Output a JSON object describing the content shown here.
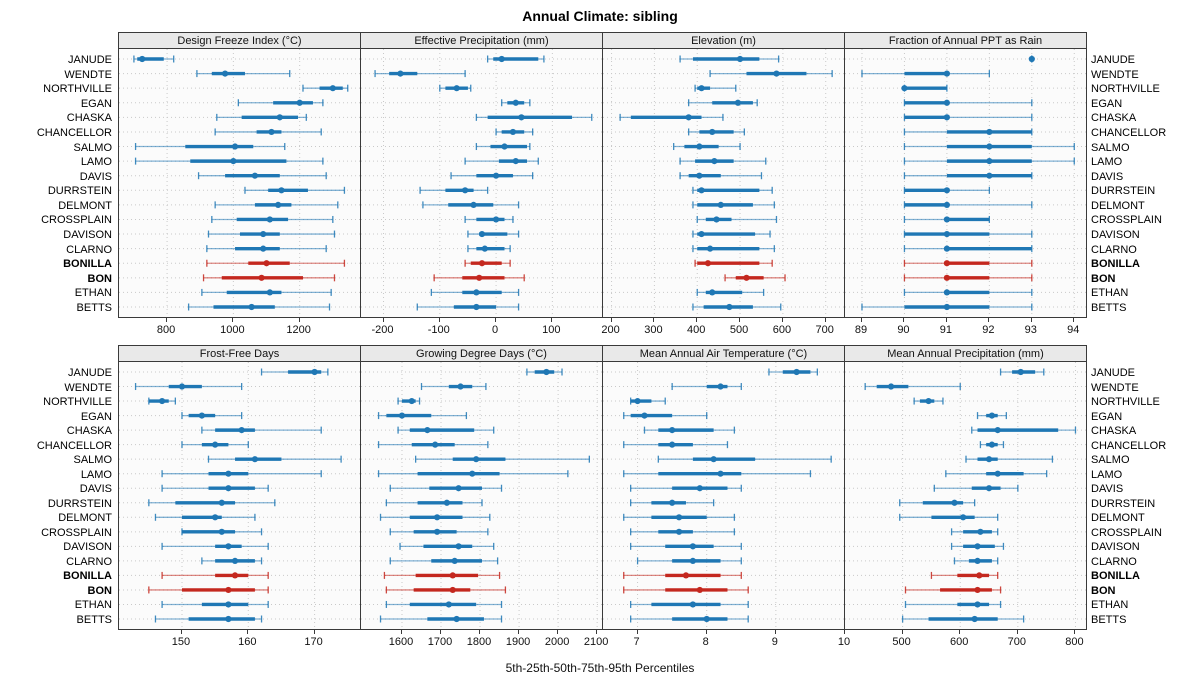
{
  "chart_data": {
    "type": "interval",
    "title": "Annual Climate: sibling",
    "caption": "5th-25th-50th-75th-95th Percentiles",
    "percentiles": [
      5,
      25,
      50,
      75,
      95
    ],
    "legend_position": "none",
    "grid": "dotted",
    "colors": {
      "normal": "#1f77b4",
      "highlight": "#c4281f",
      "grid": "#c9c9c9",
      "header_bg": "#e9e9e9",
      "panel_bg": "#fbfbfb",
      "border": "#3a3a3a"
    },
    "locations": [
      "JANUDE",
      "WENDTE",
      "NORTHVILLE",
      "EGAN",
      "CHASKA",
      "CHANCELLOR",
      "SALMO",
      "LAMO",
      "DAVIS",
      "DURRSTEIN",
      "DELMONT",
      "CROSSPLAIN",
      "DAVISON",
      "CLARNO",
      "BONILLA",
      "BON",
      "ETHAN",
      "BETTS"
    ],
    "highlighted": [
      "BONILLA",
      "BON"
    ],
    "panels": [
      {
        "title": "Design Freeze Index (°C)",
        "ticks": [
          800,
          1000,
          1200
        ],
        "xlim": [
          655,
          1385
        ],
        "values": [
          [
            700,
            710,
            725,
            790,
            820
          ],
          [
            890,
            935,
            975,
            1035,
            1170
          ],
          [
            1210,
            1260,
            1300,
            1330,
            1345
          ],
          [
            1015,
            1120,
            1200,
            1240,
            1270
          ],
          [
            950,
            1025,
            1140,
            1195,
            1220
          ],
          [
            945,
            1070,
            1115,
            1145,
            1265
          ],
          [
            705,
            855,
            1005,
            1060,
            1155
          ],
          [
            705,
            870,
            1000,
            1160,
            1270
          ],
          [
            895,
            975,
            1065,
            1140,
            1280
          ],
          [
            1035,
            1105,
            1145,
            1225,
            1335
          ],
          [
            945,
            1065,
            1135,
            1175,
            1315
          ],
          [
            935,
            1010,
            1110,
            1165,
            1300
          ],
          [
            925,
            1020,
            1090,
            1140,
            1305
          ],
          [
            920,
            1005,
            1090,
            1140,
            1280
          ],
          [
            920,
            1045,
            1100,
            1170,
            1335
          ],
          [
            910,
            965,
            1085,
            1210,
            1305
          ],
          [
            905,
            980,
            1110,
            1145,
            1295
          ],
          [
            865,
            940,
            1055,
            1125,
            1290
          ]
        ]
      },
      {
        "title": "Effective Precipitation (mm)",
        "ticks": [
          -200,
          -100,
          0,
          100
        ],
        "xlim": [
          -240,
          190
        ],
        "values": [
          [
            -15,
            -5,
            10,
            75,
            85
          ],
          [
            -215,
            -190,
            -170,
            -140,
            -55
          ],
          [
            -100,
            -90,
            -70,
            -50,
            -45
          ],
          [
            10,
            20,
            35,
            50,
            60
          ],
          [
            -35,
            -15,
            45,
            135,
            170
          ],
          [
            0,
            10,
            30,
            50,
            65
          ],
          [
            -35,
            -10,
            15,
            55,
            60
          ],
          [
            -55,
            5,
            35,
            55,
            75
          ],
          [
            -80,
            -35,
            0,
            30,
            65
          ],
          [
            -135,
            -90,
            -55,
            -40,
            -15
          ],
          [
            -130,
            -85,
            -40,
            -5,
            40
          ],
          [
            -55,
            -35,
            0,
            15,
            30
          ],
          [
            -50,
            -30,
            -25,
            20,
            40
          ],
          [
            -50,
            -35,
            -20,
            15,
            25
          ],
          [
            -55,
            -45,
            -25,
            10,
            25
          ],
          [
            -110,
            -60,
            -30,
            15,
            50
          ],
          [
            -115,
            -60,
            -35,
            10,
            40
          ],
          [
            -140,
            -75,
            -35,
            0,
            40
          ]
        ]
      },
      {
        "title": "Elevation (m)",
        "ticks": [
          200,
          300,
          400,
          500,
          600,
          700
        ],
        "xlim": [
          180,
          745
        ],
        "values": [
          [
            360,
            390,
            500,
            545,
            590
          ],
          [
            430,
            515,
            585,
            655,
            715
          ],
          [
            395,
            400,
            410,
            430,
            490
          ],
          [
            380,
            435,
            495,
            530,
            540
          ],
          [
            220,
            245,
            380,
            410,
            460
          ],
          [
            380,
            405,
            435,
            485,
            510
          ],
          [
            345,
            370,
            405,
            450,
            500
          ],
          [
            360,
            395,
            440,
            485,
            560
          ],
          [
            360,
            380,
            405,
            455,
            550
          ],
          [
            390,
            400,
            410,
            545,
            575
          ],
          [
            390,
            400,
            455,
            530,
            580
          ],
          [
            400,
            420,
            445,
            480,
            585
          ],
          [
            390,
            400,
            410,
            535,
            570
          ],
          [
            390,
            400,
            430,
            545,
            580
          ],
          [
            395,
            400,
            425,
            545,
            575
          ],
          [
            465,
            490,
            515,
            555,
            605
          ],
          [
            400,
            420,
            435,
            505,
            555
          ],
          [
            390,
            415,
            475,
            530,
            595
          ]
        ]
      },
      {
        "title": "Fraction of Annual PPT as Rain",
        "ticks": [
          89,
          90,
          91,
          92,
          93,
          94
        ],
        "xlim": [
          88.6,
          94.3
        ],
        "values": [
          [
            93,
            93,
            93,
            93,
            93
          ],
          [
            89,
            90,
            91,
            91,
            92
          ],
          [
            90,
            90,
            90,
            91,
            91
          ],
          [
            90,
            90,
            91,
            91,
            93
          ],
          [
            90,
            90,
            91,
            91,
            93
          ],
          [
            90,
            91,
            92,
            93,
            93
          ],
          [
            90,
            91,
            92,
            93,
            94
          ],
          [
            90,
            91,
            92,
            93,
            94
          ],
          [
            90,
            91,
            92,
            93,
            93
          ],
          [
            90,
            90,
            91,
            91,
            92
          ],
          [
            90,
            90,
            91,
            91,
            93
          ],
          [
            90,
            91,
            91,
            92,
            92
          ],
          [
            90,
            90,
            91,
            92,
            93
          ],
          [
            90,
            91,
            91,
            93,
            93
          ],
          [
            90,
            91,
            91,
            92,
            93
          ],
          [
            90,
            91,
            91,
            92,
            93
          ],
          [
            90,
            91,
            91,
            92,
            93
          ],
          [
            89,
            90,
            91,
            92,
            93
          ]
        ]
      },
      {
        "title": "Frost-Free Days",
        "ticks": [
          150,
          160,
          170
        ],
        "xlim": [
          140.5,
          177
        ],
        "values": [
          [
            162,
            166,
            170,
            171,
            172
          ],
          [
            143,
            148,
            150,
            153,
            159
          ],
          [
            145,
            145,
            147,
            148,
            149
          ],
          [
            150,
            151,
            153,
            155,
            159
          ],
          [
            153,
            155,
            159,
            161,
            171
          ],
          [
            150,
            153,
            155,
            157,
            160
          ],
          [
            154,
            158,
            161,
            165,
            174
          ],
          [
            147,
            154,
            157,
            160,
            171
          ],
          [
            147,
            154,
            157,
            161,
            163
          ],
          [
            145,
            149,
            156,
            158,
            164
          ],
          [
            146,
            150,
            155,
            156,
            161
          ],
          [
            150,
            150,
            156,
            158,
            162
          ],
          [
            147,
            155,
            157,
            159,
            163
          ],
          [
            153,
            155,
            158,
            161,
            162
          ],
          [
            147,
            155,
            158,
            160,
            163
          ],
          [
            145,
            150,
            157,
            161,
            163
          ],
          [
            147,
            153,
            157,
            160,
            163
          ],
          [
            146,
            151,
            157,
            161,
            162
          ]
        ]
      },
      {
        "title": "Growing Degree Days (°C)",
        "ticks": [
          1600,
          1700,
          1800,
          1900,
          2000,
          2100
        ],
        "xlim": [
          1495,
          2115
        ],
        "values": [
          [
            1920,
            1940,
            1970,
            1990,
            2010
          ],
          [
            1650,
            1720,
            1750,
            1780,
            1815
          ],
          [
            1590,
            1600,
            1625,
            1635,
            1645
          ],
          [
            1540,
            1560,
            1600,
            1675,
            1765
          ],
          [
            1590,
            1620,
            1665,
            1785,
            1835
          ],
          [
            1540,
            1625,
            1685,
            1735,
            1820
          ],
          [
            1635,
            1730,
            1790,
            1865,
            2080
          ],
          [
            1540,
            1640,
            1780,
            1850,
            2025
          ],
          [
            1570,
            1670,
            1745,
            1805,
            1855
          ],
          [
            1560,
            1640,
            1715,
            1755,
            1805
          ],
          [
            1545,
            1620,
            1690,
            1755,
            1825
          ],
          [
            1570,
            1630,
            1690,
            1740,
            1820
          ],
          [
            1595,
            1655,
            1745,
            1780,
            1835
          ],
          [
            1570,
            1675,
            1735,
            1805,
            1845
          ],
          [
            1555,
            1635,
            1730,
            1795,
            1850
          ],
          [
            1560,
            1630,
            1730,
            1775,
            1865
          ],
          [
            1560,
            1620,
            1720,
            1790,
            1855
          ],
          [
            1545,
            1665,
            1740,
            1810,
            1855
          ]
        ]
      },
      {
        "title": "Mean Annual Air Temperature (°C)",
        "ticks": [
          7,
          8,
          9,
          10
        ],
        "xlim": [
          6.5,
          10.0
        ],
        "values": [
          [
            8.9,
            9.1,
            9.3,
            9.5,
            9.6
          ],
          [
            7.5,
            8.0,
            8.2,
            8.3,
            8.5
          ],
          [
            6.9,
            6.9,
            7.0,
            7.2,
            7.4
          ],
          [
            6.8,
            6.9,
            7.1,
            7.5,
            8.0
          ],
          [
            7.1,
            7.3,
            7.5,
            8.1,
            8.4
          ],
          [
            6.8,
            7.3,
            7.5,
            7.8,
            8.3
          ],
          [
            7.3,
            7.8,
            8.1,
            8.7,
            9.8
          ],
          [
            6.8,
            7.3,
            8.2,
            8.5,
            9.5
          ],
          [
            6.9,
            7.5,
            7.9,
            8.3,
            8.5
          ],
          [
            6.9,
            7.2,
            7.5,
            7.7,
            8.1
          ],
          [
            6.8,
            7.2,
            7.6,
            8.0,
            8.4
          ],
          [
            6.9,
            7.3,
            7.6,
            7.8,
            8.4
          ],
          [
            6.9,
            7.4,
            7.8,
            8.1,
            8.5
          ],
          [
            7.0,
            7.5,
            7.8,
            8.2,
            8.5
          ],
          [
            6.8,
            7.4,
            7.7,
            8.2,
            8.5
          ],
          [
            6.8,
            7.4,
            7.9,
            8.3,
            8.6
          ],
          [
            6.9,
            7.2,
            7.8,
            8.2,
            8.6
          ],
          [
            6.9,
            7.5,
            8.0,
            8.3,
            8.6
          ]
        ]
      },
      {
        "title": "Mean Annual Precipitation (mm)",
        "ticks": [
          500,
          600,
          700,
          800
        ],
        "xlim": [
          400,
          820
        ],
        "values": [
          [
            670,
            690,
            705,
            730,
            745
          ],
          [
            435,
            455,
            480,
            510,
            600
          ],
          [
            520,
            530,
            545,
            555,
            570
          ],
          [
            630,
            645,
            655,
            665,
            680
          ],
          [
            620,
            630,
            665,
            770,
            800
          ],
          [
            635,
            645,
            655,
            665,
            675
          ],
          [
            610,
            630,
            650,
            665,
            760
          ],
          [
            575,
            645,
            665,
            710,
            750
          ],
          [
            555,
            620,
            650,
            670,
            700
          ],
          [
            495,
            535,
            590,
            605,
            625
          ],
          [
            495,
            550,
            605,
            625,
            665
          ],
          [
            585,
            605,
            635,
            655,
            665
          ],
          [
            585,
            605,
            630,
            660,
            675
          ],
          [
            590,
            615,
            630,
            655,
            665
          ],
          [
            550,
            595,
            633,
            650,
            665
          ],
          [
            505,
            565,
            630,
            655,
            670
          ],
          [
            505,
            595,
            630,
            650,
            670
          ],
          [
            500,
            545,
            625,
            665,
            710
          ]
        ]
      }
    ]
  }
}
